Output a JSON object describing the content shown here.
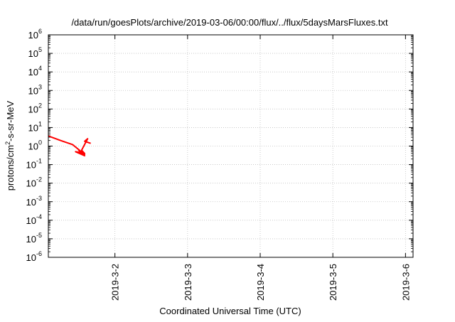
{
  "chart_data": {
    "type": "line",
    "title": "/data/run/goesPlots/archive/2019-03-06/00:00/flux/../flux/5daysMarsFluxes.txt",
    "xlabel": "Coordinated Universal Time (UTC)",
    "ylabel": {
      "base": "protons/cm",
      "sup": "2",
      "rest": "-s-sr-MeV"
    },
    "x_range": [
      "2019-03-01T02:00",
      "2019-03-06T02:30"
    ],
    "x_ticks": [
      "2019-3-2",
      "2019-3-3",
      "2019-3-4",
      "2019-3-5",
      "2019-3-6"
    ],
    "y_scale": "log",
    "ylim": [
      1e-06,
      1000000.0
    ],
    "y_ticks": [
      {
        "value": 1e-06,
        "base": "10",
        "exp": "-6"
      },
      {
        "value": 1e-05,
        "base": "10",
        "exp": "-5"
      },
      {
        "value": 0.0001,
        "base": "10",
        "exp": "-4"
      },
      {
        "value": 0.001,
        "base": "10",
        "exp": "-3"
      },
      {
        "value": 0.01,
        "base": "10",
        "exp": "-2"
      },
      {
        "value": 0.1,
        "base": "10",
        "exp": "-1"
      },
      {
        "value": 1,
        "base": "10",
        "exp": "0"
      },
      {
        "value": 10,
        "base": "10",
        "exp": "1"
      },
      {
        "value": 100,
        "base": "10",
        "exp": "2"
      },
      {
        "value": 1000,
        "base": "10",
        "exp": "3"
      },
      {
        "value": 10000,
        "base": "10",
        "exp": "4"
      },
      {
        "value": 100000,
        "base": "10",
        "exp": "5"
      },
      {
        "value": 1000000,
        "base": "10",
        "exp": "6"
      }
    ],
    "grid": true,
    "series": [
      {
        "color": "#ff0000",
        "x": [
          "2019-03-01T02:00",
          "2019-03-01T06:00",
          "2019-03-01T10:00",
          "2019-03-01T14:00",
          "2019-03-01T12:00",
          "2019-03-01T14:00",
          "2019-03-01T11:00",
          "2019-03-01T14:00",
          "2019-03-01T13:00",
          "2019-03-01T15:00",
          "2019-03-01T14:00",
          "2019-03-01T16:00"
        ],
        "y": [
          3.5,
          2.0,
          1.2,
          0.35,
          0.6,
          0.3,
          0.5,
          0.4,
          0.6,
          2.5,
          1.8,
          1.4
        ]
      },
      {
        "color": "#00ff00",
        "x": [],
        "y": []
      },
      {
        "color": "#1e7fff",
        "x": [],
        "y": []
      },
      {
        "color": "#0000cd",
        "x": [],
        "y": []
      },
      {
        "color": "#20c0c0",
        "x": [],
        "y": []
      },
      {
        "color": "#ffff00",
        "x": [],
        "y": []
      },
      {
        "color": "#a03070",
        "x": [],
        "y": []
      }
    ]
  }
}
